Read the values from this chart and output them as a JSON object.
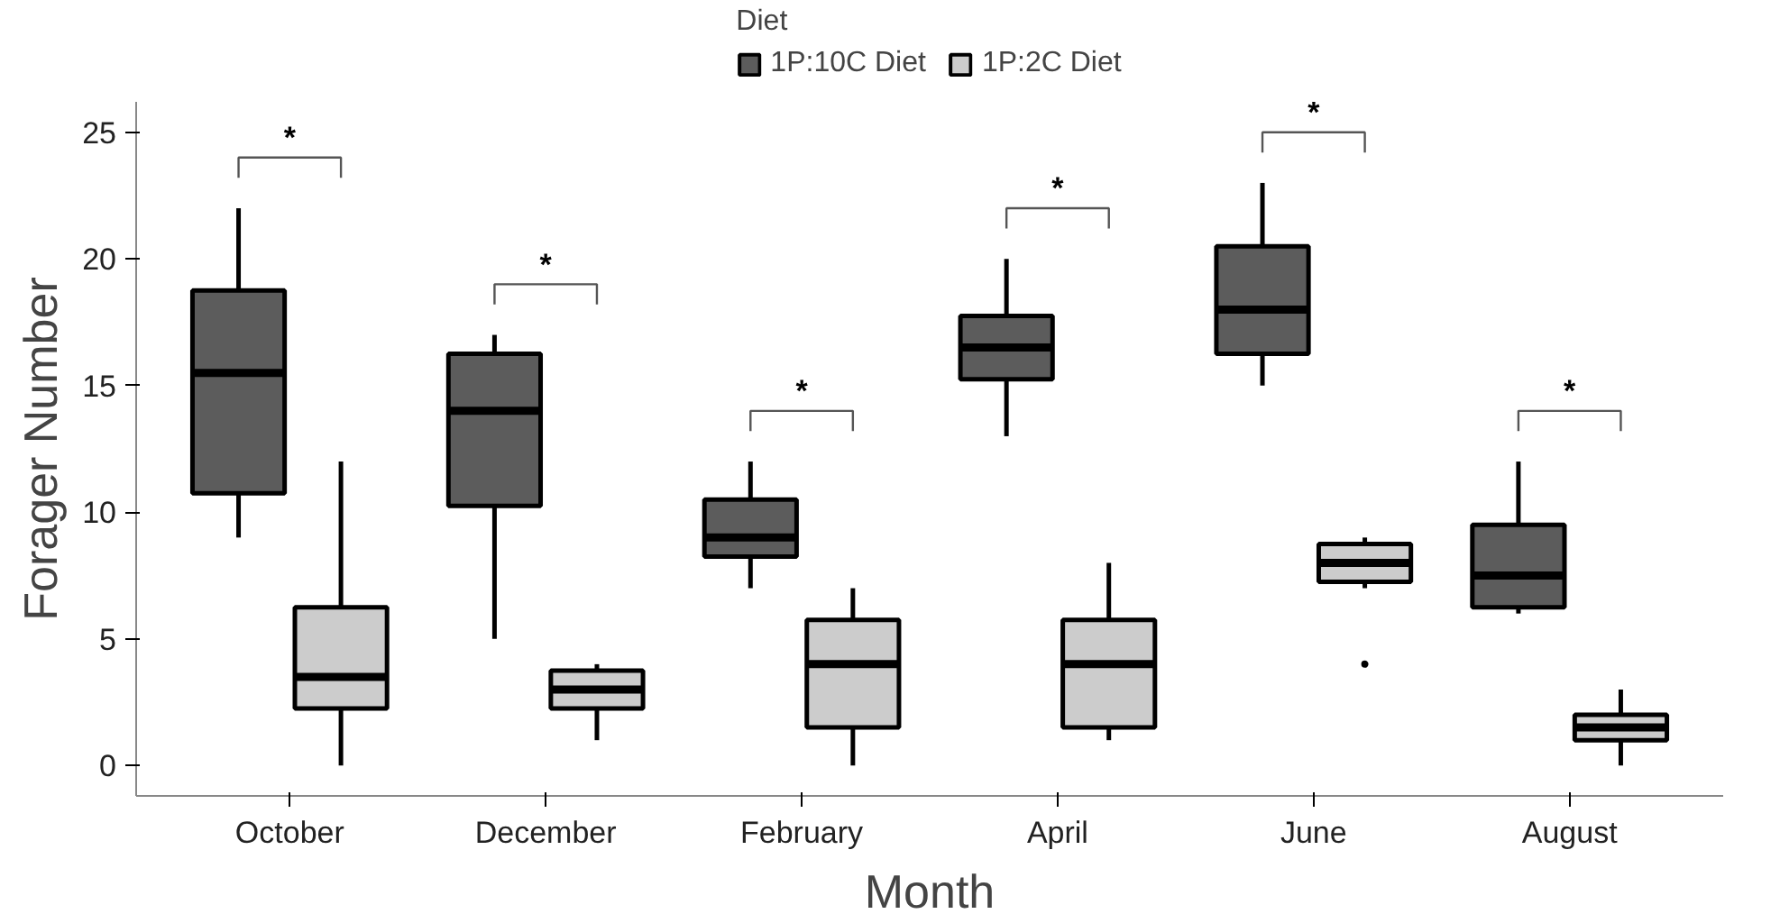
{
  "chart_data": {
    "type": "box",
    "xlabel": "Month",
    "ylabel": "Forager Number",
    "legend_title": "Diet",
    "legend": "top",
    "categories": [
      "October",
      "December",
      "February",
      "April",
      "June",
      "August"
    ],
    "ylim": [
      -1.2,
      26.2
    ],
    "yticks": [
      0,
      5,
      10,
      15,
      20,
      25
    ],
    "grid": false,
    "series": [
      {
        "name": "1P:10C Diet",
        "color": "#5c5c5c",
        "boxes": [
          {
            "low": 9,
            "q1": 10.75,
            "median": 15.5,
            "q3": 18.75,
            "high": 22
          },
          {
            "low": 5,
            "q1": 10.25,
            "median": 14,
            "q3": 16.25,
            "high": 17
          },
          {
            "low": 7,
            "q1": 8.25,
            "median": 9,
            "q3": 10.5,
            "high": 12
          },
          {
            "low": 13,
            "q1": 15.25,
            "median": 16.5,
            "q3": 17.75,
            "high": 20
          },
          {
            "low": 15,
            "q1": 16.25,
            "median": 18,
            "q3": 20.5,
            "high": 23
          },
          {
            "low": 6,
            "q1": 6.25,
            "median": 7.5,
            "q3": 9.5,
            "high": 12
          }
        ]
      },
      {
        "name": "1P:2C Diet",
        "color": "#cccccc",
        "boxes": [
          {
            "low": 0,
            "q1": 2.25,
            "median": 3.5,
            "q3": 6.25,
            "high": 12
          },
          {
            "low": 1,
            "q1": 2.25,
            "median": 3,
            "q3": 3.75,
            "high": 4
          },
          {
            "low": 0,
            "q1": 1.5,
            "median": 4,
            "q3": 5.75,
            "high": 7
          },
          {
            "low": 1,
            "q1": 1.5,
            "median": 4,
            "q3": 5.75,
            "high": 8
          },
          {
            "low": 7,
            "q1": 7.25,
            "median": 8,
            "q3": 8.75,
            "high": 9,
            "outliers": [
              4
            ]
          },
          {
            "low": 0,
            "q1": 1,
            "median": 1.5,
            "q3": 2,
            "high": 3
          }
        ]
      }
    ],
    "annotations": [
      "*",
      "*",
      "*",
      "*",
      "*",
      "*"
    ]
  }
}
